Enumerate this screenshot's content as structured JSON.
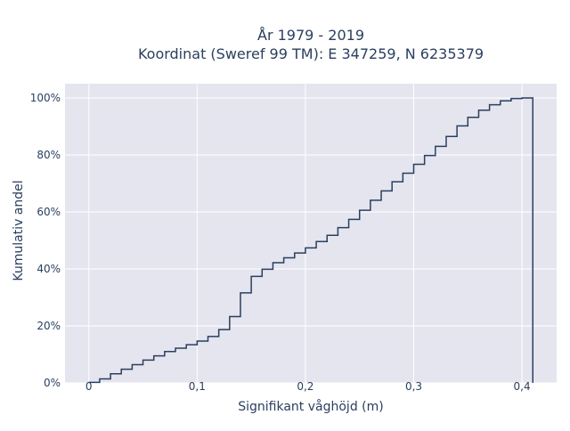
{
  "chart_data": {
    "type": "line",
    "step": true,
    "title_line1": "År 1979 - 2019",
    "title_line2": "Koordinat (Sweref 99 TM): E 347259, N 6235379",
    "xlabel": "Signifikant våghöjd (m)",
    "ylabel": "Kumulativ andel",
    "xlim": [
      -0.022,
      0.432
    ],
    "ylim": [
      0,
      1.05
    ],
    "x_ticks": [
      0,
      0.1,
      0.2,
      0.3,
      0.4
    ],
    "x_tick_labels": [
      "0",
      "0,1",
      "0,2",
      "0,3",
      "0,4"
    ],
    "y_ticks": [
      0,
      0.2,
      0.4,
      0.6,
      0.8,
      1.0
    ],
    "y_tick_labels": [
      "0%",
      "20%",
      "40%",
      "60%",
      "80%",
      "100%"
    ],
    "grid": true,
    "line_color": "#2a3f5f",
    "plot_bg": "#e5e5ef",
    "x": [
      0,
      0.01,
      0.02,
      0.03,
      0.04,
      0.05,
      0.06,
      0.07,
      0.08,
      0.09,
      0.1,
      0.11,
      0.12,
      0.13,
      0.14,
      0.15,
      0.16,
      0.17,
      0.18,
      0.19,
      0.2,
      0.21,
      0.22,
      0.23,
      0.24,
      0.25,
      0.26,
      0.27,
      0.28,
      0.29,
      0.3,
      0.31,
      0.32,
      0.33,
      0.34,
      0.35,
      0.36,
      0.37,
      0.38,
      0.39,
      0.4,
      0.41
    ],
    "y": [
      0.002,
      0.014,
      0.032,
      0.048,
      0.064,
      0.08,
      0.095,
      0.11,
      0.122,
      0.134,
      0.147,
      0.163,
      0.187,
      0.233,
      0.316,
      0.374,
      0.399,
      0.422,
      0.439,
      0.456,
      0.474,
      0.496,
      0.518,
      0.545,
      0.574,
      0.606,
      0.641,
      0.674,
      0.706,
      0.736,
      0.767,
      0.798,
      0.83,
      0.865,
      0.902,
      0.932,
      0.957,
      0.976,
      0.99,
      0.998,
      1.0,
      0.0
    ]
  }
}
